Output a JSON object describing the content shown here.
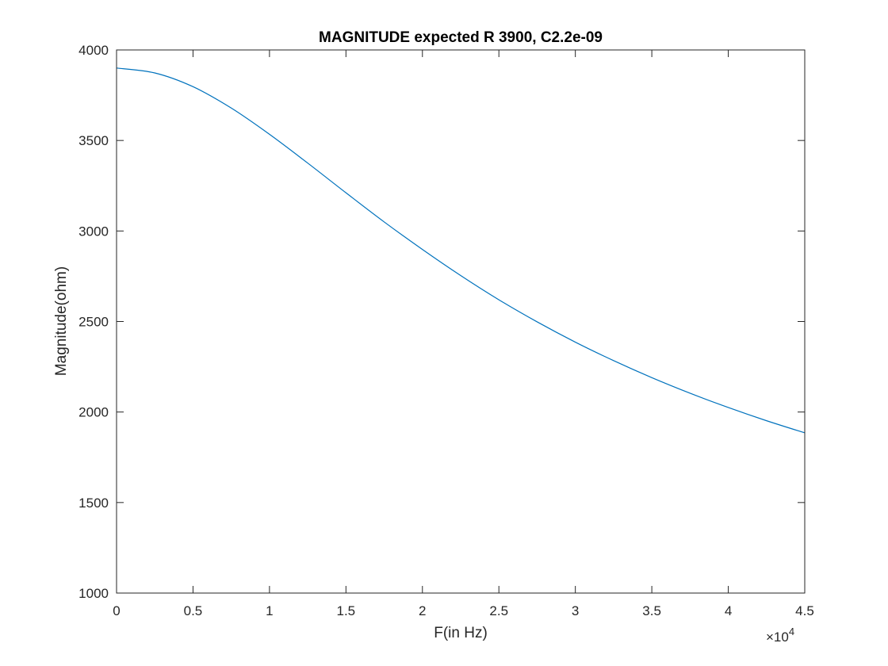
{
  "chart_data": {
    "type": "line",
    "title": "MAGNITUDE expected R 3900, C2.2e-09",
    "xlabel": "F(in Hz)",
    "ylabel": "Magnitude(ohm)",
    "xlim": [
      0,
      45000
    ],
    "ylim": [
      1000,
      4000
    ],
    "x_ticks": [
      0,
      5000,
      10000,
      15000,
      20000,
      25000,
      30000,
      35000,
      40000,
      45000
    ],
    "x_tick_labels": [
      "0",
      "0.5",
      "1",
      "1.5",
      "2",
      "2.5",
      "3",
      "3.5",
      "4",
      "4.5"
    ],
    "x_exponent_base": "×10",
    "x_exponent_power": "4",
    "y_ticks": [
      1000,
      1500,
      2000,
      2500,
      3000,
      3500,
      4000
    ],
    "y_tick_labels": [
      "1000",
      "1500",
      "2000",
      "2500",
      "3000",
      "3500",
      "4000"
    ],
    "grid": false,
    "series": [
      {
        "color": "#0072bd",
        "x": [
          0,
          2500,
          5000,
          7500,
          10000,
          12500,
          15000,
          17500,
          20000,
          22500,
          25000,
          27500,
          30000,
          32500,
          35000,
          37500,
          40000,
          42500,
          45000
        ],
        "y": [
          3900,
          3873,
          3797,
          3679,
          3534,
          3375,
          3211,
          3050,
          2898,
          2754,
          2620,
          2498,
          2386,
          2284,
          2190,
          2104,
          2025,
          1952,
          1885
        ]
      }
    ]
  }
}
